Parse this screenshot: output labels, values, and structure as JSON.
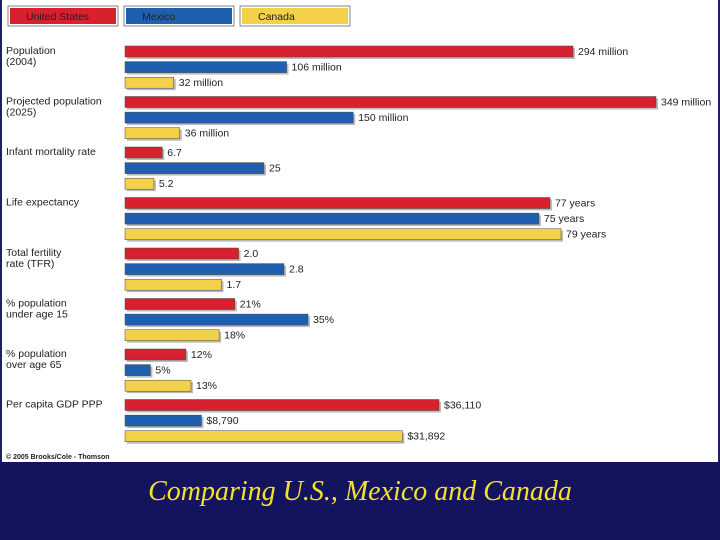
{
  "slide_title": "Comparing U.S., Mexico and Canada",
  "copyright": "© 2005 Brooks/Cole - Thomson",
  "colors": {
    "United States": "#d8202e",
    "Mexico": "#1f5fb0",
    "Canada": "#f3d24a"
  },
  "chart_data": {
    "type": "bar",
    "orientation": "horizontal",
    "title": "",
    "legend": [
      "United States",
      "Mexico",
      "Canada"
    ],
    "legend_position": "top-left",
    "groups": [
      {
        "label": [
          "Population",
          "(2004)"
        ],
        "bars": [
          {
            "series": "United States",
            "value": 294,
            "text": "294 million"
          },
          {
            "series": "Mexico",
            "value": 106,
            "text": "106 million"
          },
          {
            "series": "Canada",
            "value": 32,
            "text": "32 million"
          }
        ]
      },
      {
        "label": [
          "Projected population",
          "(2025)"
        ],
        "bars": [
          {
            "series": "United States",
            "value": 349,
            "text": "349 million"
          },
          {
            "series": "Mexico",
            "value": 150,
            "text": "150 million"
          },
          {
            "series": "Canada",
            "value": 36,
            "text": "36 million"
          }
        ]
      },
      {
        "label": [
          "Infant mortality rate"
        ],
        "bars": [
          {
            "series": "United States",
            "value": 6.7,
            "text": "6.7"
          },
          {
            "series": "Mexico",
            "value": 25,
            "text": "25"
          },
          {
            "series": "Canada",
            "value": 5.2,
            "text": "5.2"
          }
        ]
      },
      {
        "label": [
          "Life expectancy"
        ],
        "bars": [
          {
            "series": "United States",
            "value": 77,
            "text": "77 years"
          },
          {
            "series": "Mexico",
            "value": 75,
            "text": "75 years"
          },
          {
            "series": "Canada",
            "value": 79,
            "text": "79 years"
          }
        ]
      },
      {
        "label": [
          "Total fertility",
          "rate (TFR)"
        ],
        "bars": [
          {
            "series": "United States",
            "value": 2.0,
            "text": "2.0"
          },
          {
            "series": "Mexico",
            "value": 2.8,
            "text": "2.8"
          },
          {
            "series": "Canada",
            "value": 1.7,
            "text": "1.7"
          }
        ]
      },
      {
        "label": [
          "% population",
          "under age 15"
        ],
        "bars": [
          {
            "series": "United States",
            "value": 21,
            "text": "21%"
          },
          {
            "series": "Mexico",
            "value": 35,
            "text": "35%"
          },
          {
            "series": "Canada",
            "value": 18,
            "text": "18%"
          }
        ]
      },
      {
        "label": [
          "% population",
          "over age 65"
        ],
        "bars": [
          {
            "series": "United States",
            "value": 12,
            "text": "12%"
          },
          {
            "series": "Mexico",
            "value": 5,
            "text": "5%"
          },
          {
            "series": "Canada",
            "value": 13,
            "text": "13%"
          }
        ]
      },
      {
        "label": [
          "Per capita GDP PPP"
        ],
        "bars": [
          {
            "series": "United States",
            "value": 36110,
            "text": "$36,110"
          },
          {
            "series": "Mexico",
            "value": 8790,
            "text": "$8,790"
          },
          {
            "series": "Canada",
            "value": 31892,
            "text": "$31,892"
          }
        ]
      }
    ]
  }
}
